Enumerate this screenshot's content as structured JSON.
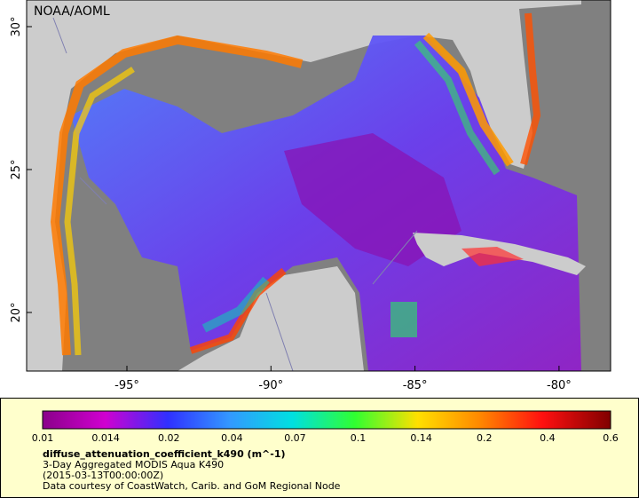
{
  "map": {
    "attribution": "NOAA/AOML",
    "lat_labels": [
      "30°",
      "25°",
      "20°"
    ],
    "lon_labels": [
      "-95°",
      "-90°",
      "-85°",
      "-80°"
    ]
  },
  "legend": {
    "ticks": [
      0.01,
      0.014,
      0.02,
      0.04,
      0.07,
      0.1,
      0.14,
      0.2,
      0.4,
      0.6
    ],
    "variable": "diffuse_attenuation_coefficient_k490 (m^-1)",
    "lines": [
      "3-Day Aggregated MODIS Aqua K490",
      "(2015-03-13T00:00:00Z)",
      "Data courtesy of CoastWatch, Carib. and GoM Regional Node"
    ]
  }
}
